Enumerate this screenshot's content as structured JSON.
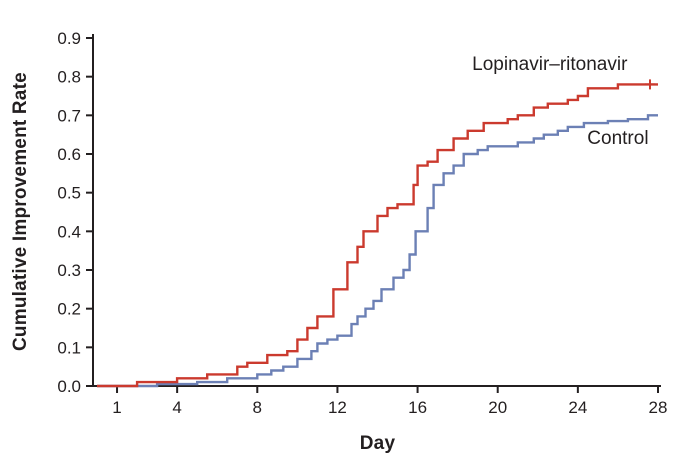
{
  "chart_data": {
    "type": "line",
    "subtype": "step",
    "title": "",
    "xlabel": "Day",
    "ylabel": "Cumulative Improvement Rate",
    "xlim": [
      0,
      28
    ],
    "ylim": [
      0,
      0.9
    ],
    "xticks": [
      1,
      4,
      8,
      12,
      16,
      20,
      24,
      28
    ],
    "yticks": [
      0.0,
      0.1,
      0.2,
      0.3,
      0.4,
      0.5,
      0.6,
      0.7,
      0.8,
      0.9
    ],
    "grid": false,
    "legend_position": "inline-annotations",
    "axis_color": "#231f20",
    "series": [
      {
        "name": "Control",
        "color": "#6c80b5",
        "label": [
          26,
          0.64
        ],
        "points": [
          [
            0,
            0
          ],
          [
            3,
            0.005
          ],
          [
            5,
            0.01
          ],
          [
            6.5,
            0.02
          ],
          [
            8,
            0.03
          ],
          [
            8.7,
            0.04
          ],
          [
            9.3,
            0.05
          ],
          [
            10,
            0.07
          ],
          [
            10.7,
            0.09
          ],
          [
            11,
            0.11
          ],
          [
            11.5,
            0.12
          ],
          [
            12,
            0.13
          ],
          [
            12.7,
            0.16
          ],
          [
            13,
            0.18
          ],
          [
            13.4,
            0.2
          ],
          [
            13.8,
            0.22
          ],
          [
            14.2,
            0.25
          ],
          [
            14.8,
            0.28
          ],
          [
            15.3,
            0.3
          ],
          [
            15.6,
            0.34
          ],
          [
            15.9,
            0.4
          ],
          [
            16.5,
            0.46
          ],
          [
            16.8,
            0.52
          ],
          [
            17.3,
            0.55
          ],
          [
            17.8,
            0.57
          ],
          [
            18.3,
            0.6
          ],
          [
            19,
            0.61
          ],
          [
            19.5,
            0.62
          ],
          [
            21,
            0.63
          ],
          [
            21.8,
            0.64
          ],
          [
            22.3,
            0.65
          ],
          [
            23,
            0.66
          ],
          [
            23.5,
            0.67
          ],
          [
            24.3,
            0.68
          ],
          [
            25.5,
            0.685
          ],
          [
            26.5,
            0.69
          ],
          [
            27.5,
            0.7
          ],
          [
            28,
            0.7
          ]
        ],
        "censors": []
      },
      {
        "name": "Lopinavir–ritonavir",
        "color": "#cb3a2e",
        "label": [
          22.6,
          0.83
        ],
        "points": [
          [
            0,
            0
          ],
          [
            2,
            0.01
          ],
          [
            4,
            0.02
          ],
          [
            5.5,
            0.03
          ],
          [
            7,
            0.05
          ],
          [
            7.5,
            0.06
          ],
          [
            8.5,
            0.08
          ],
          [
            9.5,
            0.09
          ],
          [
            10,
            0.12
          ],
          [
            10.5,
            0.15
          ],
          [
            11,
            0.18
          ],
          [
            11.8,
            0.25
          ],
          [
            12.5,
            0.32
          ],
          [
            13,
            0.36
          ],
          [
            13.3,
            0.4
          ],
          [
            14,
            0.44
          ],
          [
            14.5,
            0.46
          ],
          [
            15,
            0.47
          ],
          [
            15.8,
            0.52
          ],
          [
            16,
            0.57
          ],
          [
            16.5,
            0.58
          ],
          [
            17,
            0.61
          ],
          [
            17.8,
            0.64
          ],
          [
            18.5,
            0.66
          ],
          [
            19.3,
            0.68
          ],
          [
            20.5,
            0.69
          ],
          [
            21,
            0.7
          ],
          [
            21.8,
            0.72
          ],
          [
            22.5,
            0.73
          ],
          [
            23.5,
            0.74
          ],
          [
            24,
            0.75
          ],
          [
            24.5,
            0.77
          ],
          [
            26,
            0.78
          ],
          [
            28,
            0.78
          ]
        ],
        "censors": [
          [
            27.6,
            0.78
          ]
        ]
      }
    ]
  }
}
